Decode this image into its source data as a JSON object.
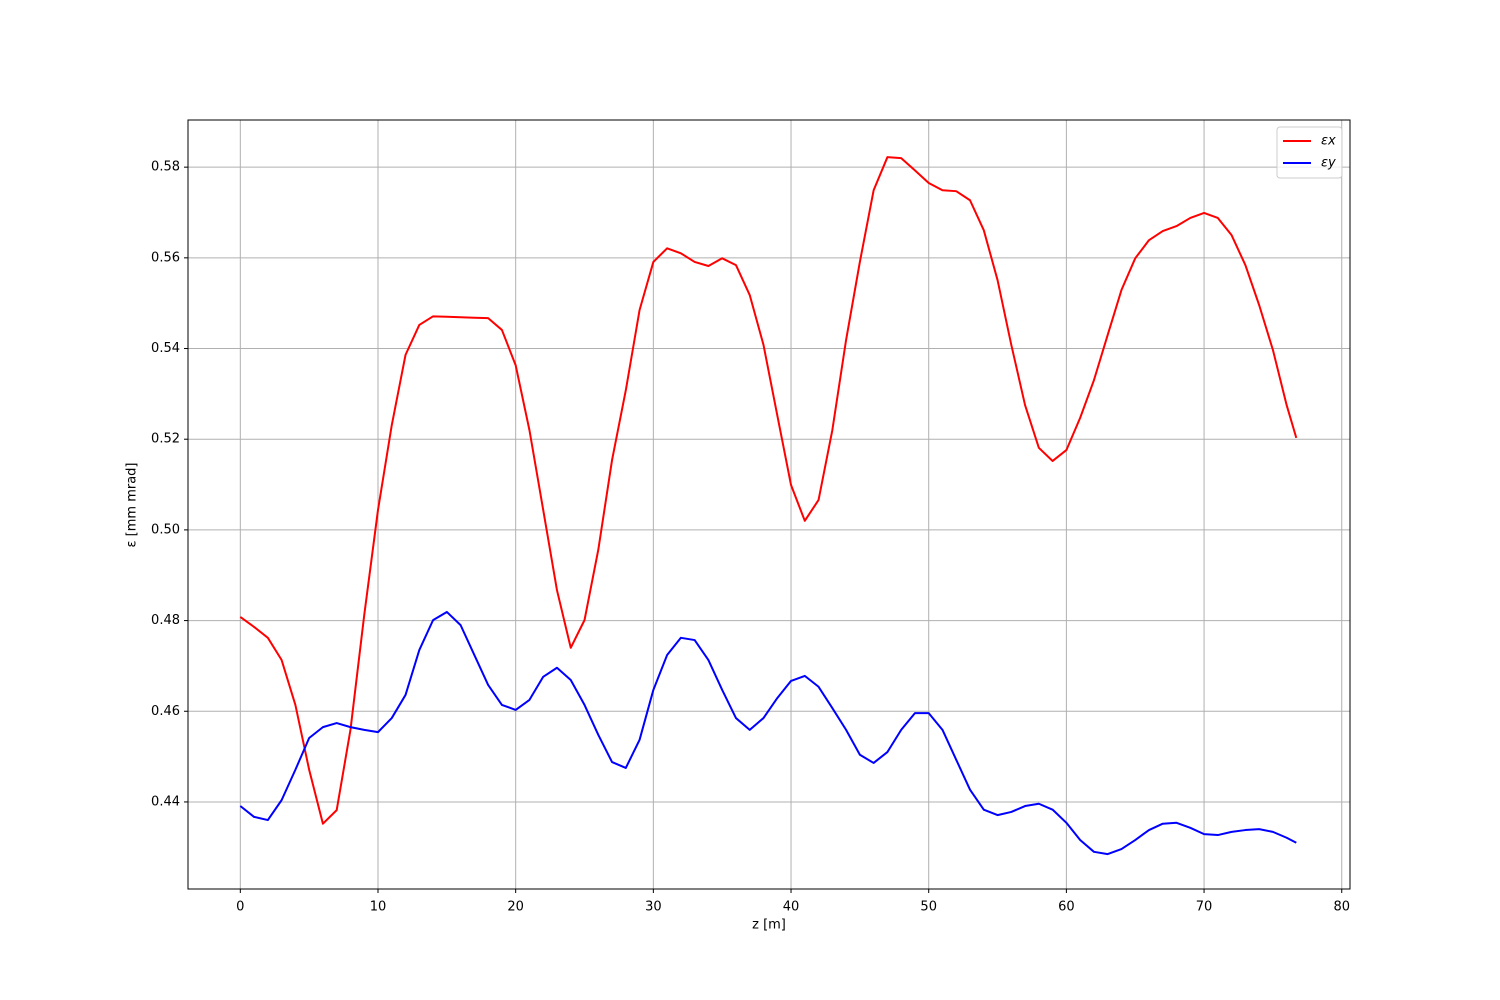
{
  "chart_data": {
    "type": "line",
    "xlabel": "z [m]",
    "ylabel": "ε [mm mrad]",
    "x": [
      0,
      1,
      2,
      3,
      4,
      5,
      6,
      7,
      8,
      9,
      10,
      11,
      12,
      13,
      14,
      15,
      16,
      17,
      18,
      19,
      20,
      21,
      22,
      23,
      24,
      25,
      26,
      27,
      28,
      29,
      30,
      31,
      32,
      33,
      34,
      35,
      36,
      37,
      38,
      39,
      40,
      41,
      42,
      43,
      44,
      45,
      46,
      47,
      48,
      49,
      50,
      51,
      52,
      53,
      54,
      55,
      56,
      57,
      58,
      59,
      60,
      61,
      62,
      63,
      64,
      65,
      66,
      67,
      68,
      69,
      70,
      71,
      72,
      73,
      74,
      75,
      76,
      76.7
    ],
    "series": [
      {
        "name": "εx",
        "color": "#ff0000",
        "values": [
          0.4808,
          0.4786,
          0.4762,
          0.4713,
          0.4614,
          0.4471,
          0.4352,
          0.4382,
          0.4559,
          0.4812,
          0.5044,
          0.5231,
          0.5386,
          0.5452,
          0.5471,
          0.547,
          0.5469,
          0.5468,
          0.5467,
          0.5441,
          0.5363,
          0.522,
          0.5044,
          0.4867,
          0.474,
          0.4801,
          0.4956,
          0.5154,
          0.5308,
          0.5485,
          0.5591,
          0.5621,
          0.561,
          0.5591,
          0.5582,
          0.5599,
          0.5584,
          0.5518,
          0.5408,
          0.5253,
          0.5099,
          0.502,
          0.5066,
          0.522,
          0.5419,
          0.5591,
          0.5749,
          0.5822,
          0.582,
          0.5793,
          0.5765,
          0.5749,
          0.5747,
          0.5727,
          0.5661,
          0.5551,
          0.5408,
          0.5275,
          0.5181,
          0.5152,
          0.5176,
          0.5247,
          0.533,
          0.543,
          0.5529,
          0.5599,
          0.5639,
          0.5659,
          0.567,
          0.5688,
          0.5699,
          0.5688,
          0.565,
          0.5584,
          0.5496,
          0.5397,
          0.5275,
          0.5203
        ]
      },
      {
        "name": "εy",
        "color": "#0000ff",
        "values": [
          0.4391,
          0.4367,
          0.436,
          0.4404,
          0.4471,
          0.4541,
          0.4565,
          0.4574,
          0.4565,
          0.4559,
          0.4554,
          0.4585,
          0.4636,
          0.4735,
          0.4801,
          0.4819,
          0.479,
          0.4724,
          0.4658,
          0.4614,
          0.4603,
          0.4625,
          0.4676,
          0.4696,
          0.4669,
          0.4614,
          0.4548,
          0.4488,
          0.4475,
          0.4537,
          0.4647,
          0.4724,
          0.4762,
          0.4757,
          0.4713,
          0.4647,
          0.4585,
          0.4559,
          0.4585,
          0.4629,
          0.4667,
          0.4678,
          0.4654,
          0.4607,
          0.4559,
          0.4504,
          0.4486,
          0.451,
          0.4559,
          0.4596,
          0.4596,
          0.4559,
          0.4493,
          0.4427,
          0.4383,
          0.4371,
          0.4378,
          0.4391,
          0.4396,
          0.4383,
          0.4354,
          0.4316,
          0.429,
          0.4285,
          0.4296,
          0.4316,
          0.4338,
          0.4352,
          0.4354,
          0.4343,
          0.4329,
          0.4327,
          0.4334,
          0.4338,
          0.434,
          0.4334,
          0.4321,
          0.431
        ]
      }
    ],
    "xlim": [
      -3.8,
      80.6
    ],
    "xticks": [
      0,
      10,
      20,
      30,
      40,
      50,
      60,
      70,
      80
    ],
    "ylim": [
      0.4208,
      0.5904
    ],
    "yticks": [
      0.44,
      0.46,
      0.48,
      {
        "value": 0.5,
        "label": "0.50"
      },
      0.52,
      0.54,
      0.56,
      0.58
    ],
    "grid": true,
    "legend": "upper right"
  }
}
